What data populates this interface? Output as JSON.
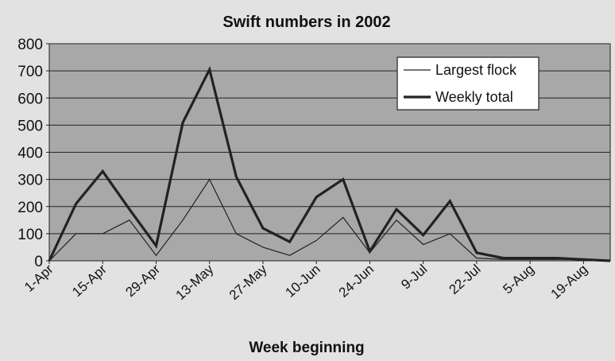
{
  "chart_data": {
    "type": "line",
    "title": "Swift numbers in 2002",
    "xlabel": "Week beginning",
    "ylabel": "",
    "ylim": [
      0,
      800
    ],
    "yticks": [
      0,
      100,
      200,
      300,
      400,
      500,
      600,
      700,
      800
    ],
    "x": [
      "1-Apr",
      "8-Apr",
      "15-Apr",
      "22-Apr",
      "29-Apr",
      "6-May",
      "13-May",
      "20-May",
      "27-May",
      "3-Jun",
      "10-Jun",
      "17-Jun",
      "24-Jun",
      "1-Jul",
      "9-Jul",
      "15-Jul",
      "22-Jul",
      "29-Jul",
      "5-Aug",
      "12-Aug",
      "19-Aug",
      "26-Aug"
    ],
    "xtick_labels": [
      "1-Apr",
      "15-Apr",
      "29-Apr",
      "13-May",
      "27-May",
      "10-Jun",
      "24-Jun",
      "9-Jul",
      "22-Jul",
      "5-Aug",
      "19-Aug"
    ],
    "series": [
      {
        "name": "Largest flock",
        "style": "thin",
        "values": [
          0,
          100,
          100,
          150,
          20,
          150,
          300,
          100,
          50,
          20,
          75,
          160,
          30,
          150,
          60,
          100,
          10,
          5,
          5,
          5,
          5,
          0
        ]
      },
      {
        "name": "Weekly total",
        "style": "thick",
        "values": [
          0,
          210,
          330,
          190,
          55,
          510,
          705,
          310,
          120,
          70,
          235,
          300,
          35,
          190,
          95,
          220,
          30,
          10,
          10,
          10,
          5,
          0
        ]
      }
    ],
    "legend": "top-right",
    "grid": true,
    "colors": {
      "background": "#e2e2e2",
      "plot_area": "#a8a8a8",
      "gridline": "#222222",
      "line": "#222222"
    }
  }
}
